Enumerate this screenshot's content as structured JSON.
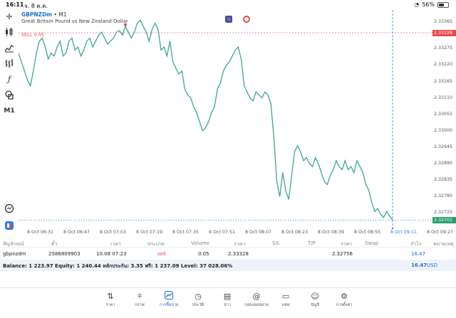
{
  "status_bar": {
    "time": "16:11",
    "date": "จ. 8 ต.ค.",
    "battery": "56%",
    "battery_level": 0.56
  },
  "toolbar": {
    "items": [
      {
        "icon": "crosshair-icon"
      },
      {
        "icon": "candlestick-icon"
      },
      {
        "icon": "indicators-icon"
      },
      {
        "icon": "bars-icon"
      },
      {
        "icon": "function-icon"
      },
      {
        "icon": "objects-icon"
      },
      {
        "icon": "timeframe",
        "label": "M1"
      },
      {
        "icon": "zoom-icon"
      }
    ]
  },
  "chart": {
    "symbol": "GBPNZDm",
    "timeframe": "• M1",
    "description": "Great Britain Pound vs New Zealand Dollar",
    "sell_label": "SELL 0.05",
    "sell_price": "2.33328",
    "current_price": "2.32701",
    "colors": {
      "line": "#3aaa7f",
      "sell": "#e84b4b",
      "current": "#2a9d6f",
      "cursor": "#2b7de9"
    },
    "price_labels": [
      "2.33365",
      "2.33328",
      "2.33275",
      "2.33220",
      "2.33165",
      "2.33110",
      "2.33055",
      "2.33000",
      "2.32945",
      "2.32890",
      "2.32835",
      "2.32780",
      "2.32725",
      "2.32701"
    ],
    "time_labels": [
      "8 Oct 06:31",
      "8 Oct 06:47",
      "8 Oct 07:03",
      "8 Oct 07:19",
      "8 Oct 07:35",
      "8 Oct 07:51",
      "8 Oct 08:07",
      "8 Oct 08:23",
      "8 Oct 08:39",
      "8 Oct 08:55",
      "8 Oct 09:11",
      "8 Oct 09:27"
    ]
  },
  "chart_data": {
    "type": "line",
    "ylim": [
      2.3269,
      2.3339
    ],
    "values": [
      2.3326,
      2.3323,
      2.332,
      2.3317,
      2.3315,
      2.332,
      2.3326,
      2.333,
      2.3331,
      2.3328,
      2.3324,
      2.3326,
      2.3325,
      2.3328,
      2.333,
      2.3325,
      2.3326,
      2.333,
      2.3331,
      2.3327,
      2.3328,
      2.3325,
      2.3327,
      2.333,
      2.3331,
      2.3328,
      2.333,
      2.3332,
      2.3333,
      2.3331,
      2.3329,
      2.333,
      2.3331,
      2.3333,
      2.33335,
      2.3332,
      2.3335,
      2.3333,
      2.3331,
      2.3333,
      2.3336,
      2.3337,
      2.3335,
      2.3333,
      2.333,
      2.3334,
      2.3336,
      2.3334,
      2.3327,
      2.3328,
      2.3325,
      2.333,
      2.3323,
      2.3321,
      2.3319,
      2.332,
      2.3314,
      2.3312,
      2.3311,
      2.3308,
      2.3306,
      2.3303,
      2.33,
      2.3301,
      2.3303,
      2.3306,
      2.3308,
      2.3314,
      2.3316,
      2.332,
      2.3322,
      2.3323,
      2.3325,
      2.3327,
      2.3328,
      2.3324,
      2.3315,
      2.3313,
      2.3311,
      2.331,
      2.3313,
      2.3312,
      2.3311,
      2.3313,
      2.3312,
      2.3309,
      2.3298,
      2.3283,
      2.3278,
      2.3286,
      2.328,
      2.3277,
      2.3285,
      2.3293,
      2.3295,
      2.3293,
      2.329,
      2.3291,
      2.3289,
      2.3288,
      2.3291,
      2.3289,
      2.3286,
      2.3283,
      2.3282,
      2.3285,
      2.3287,
      2.329,
      2.3288,
      2.3287,
      2.329,
      2.3287,
      2.3288,
      2.3286,
      2.329,
      2.3288,
      2.3286,
      2.3282,
      2.328,
      2.3276,
      2.3273,
      2.3274,
      2.3272,
      2.3271,
      2.3273,
      2.32715,
      2.32701
    ]
  },
  "table": {
    "headers": [
      "สัญลักษณ์",
      "ตั๋ว",
      "เวลา",
      "ประเภท",
      "Volume",
      "ราคา",
      "S/L",
      "T/P",
      "ราคา",
      "Swap",
      "กำไร",
      "หมายเหตุ"
    ],
    "row": {
      "symbol": "gbpnzdm",
      "ticket": "2586809903",
      "time": "10.08 07:23",
      "type": "sell",
      "volume": "0.05",
      "price": "2.33328",
      "sl": "",
      "tp": "",
      "cur_price": "2.32756",
      "swap": "",
      "profit": "16.47",
      "comment": ""
    }
  },
  "balance": {
    "text": "Balance: 1 223.97 Equity: 1 240.44 หลักประกัน: 3.35 ฟรี: 1 237.09 Level: 37 028.06%",
    "profit": "16.47",
    "currency": "USD"
  },
  "tabbar": [
    {
      "label": "ราคา",
      "icon": "quotes-icon"
    },
    {
      "label": "กราฟ",
      "icon": "chart-icon"
    },
    {
      "label": "การซื้อขาย",
      "icon": "trade-icon",
      "active": true
    },
    {
      "label": "ประวัติ",
      "icon": "history-icon"
    },
    {
      "label": "ข่าว",
      "icon": "news-icon"
    },
    {
      "label": "กล่องจดหมาย",
      "icon": "mailbox-icon"
    },
    {
      "label": "แชท",
      "icon": "chat-icon"
    },
    {
      "label": "บัญชี",
      "icon": "account-icon"
    },
    {
      "label": "การตั้งค่า",
      "icon": "settings-icon"
    }
  ]
}
